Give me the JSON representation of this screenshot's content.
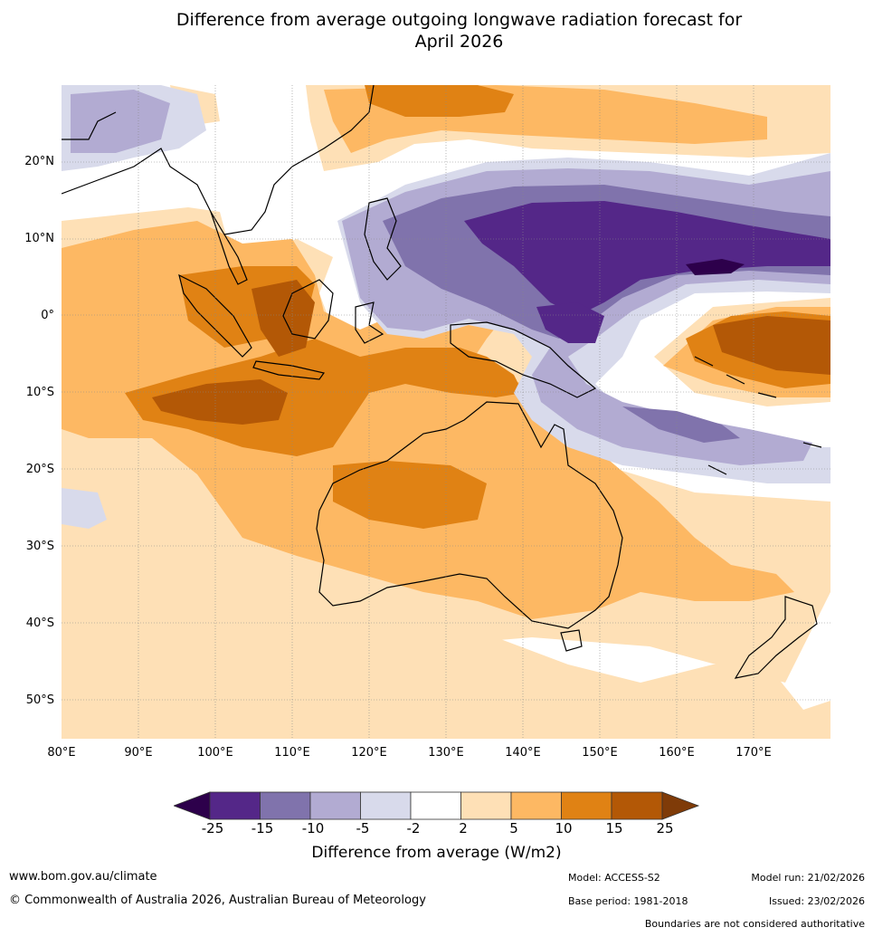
{
  "title_line1": "Difference from average outgoing longwave radiation forecast for",
  "title_line2": "April 2026",
  "lat_labels": [
    "20°N",
    "10°N",
    "0°",
    "10°S",
    "20°S",
    "30°S",
    "40°S",
    "50°S"
  ],
  "lon_labels": [
    "80°E",
    "90°E",
    "100°E",
    "110°E",
    "120°E",
    "130°E",
    "140°E",
    "150°E",
    "160°E",
    "170°E"
  ],
  "colorbar": {
    "ticks": [
      "-25",
      "-15",
      "-10",
      "-5",
      "-2",
      "2",
      "5",
      "10",
      "15",
      "25"
    ],
    "label": "Difference from average (W/m2)",
    "colors": {
      "lt_neg25": "#2d004b",
      "neg25_neg15": "#542788",
      "neg15_neg10": "#8073ac",
      "neg10_neg5": "#b2abd2",
      "neg5_neg2": "#d8daeb",
      "neg2_2": "#ffffff",
      "p2_5": "#fee0b6",
      "p5_10": "#fdb863",
      "p10_15": "#e08214",
      "p15_25": "#b35806",
      "gt25": "#7f3b08"
    }
  },
  "footer": {
    "website": "www.bom.gov.au/climate",
    "copyright": "© Commonwealth of Australia 2026, Australian Bureau of Meteorology",
    "model": "Model: ACCESS-S2",
    "base_period": "Base period: 1981-2018",
    "model_run": "Model run: 21/02/2026",
    "issued": "Issued: 23/02/2026",
    "disclaimer": "Boundaries are not considered authoritative"
  }
}
